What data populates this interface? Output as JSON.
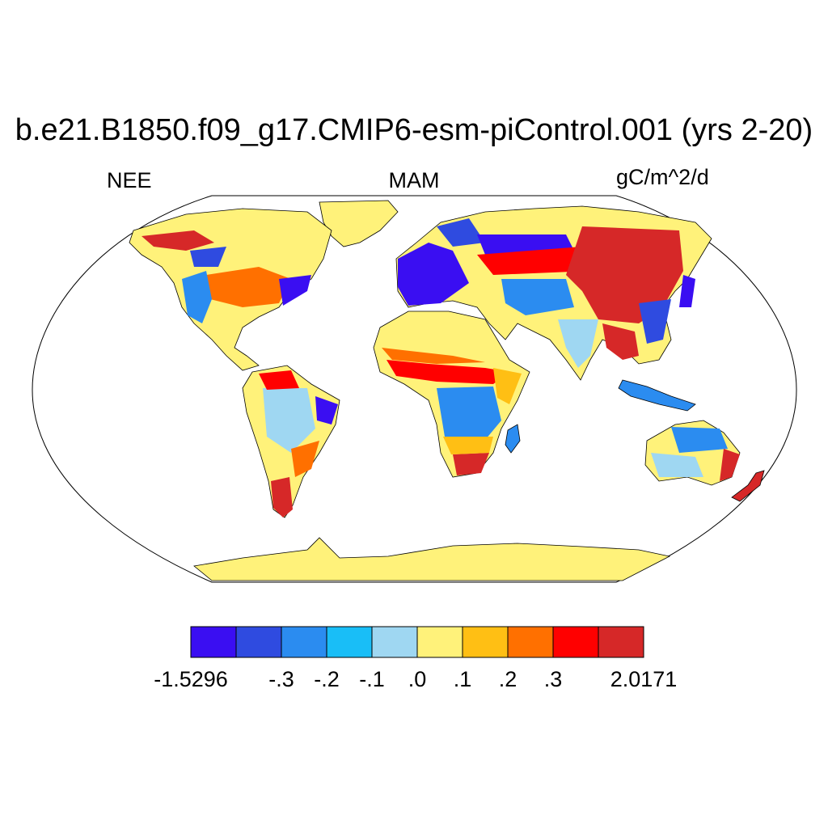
{
  "title": "b.e21.B1850.f09_g17.CMIP6-esm-piControl.001 (yrs 2-20)",
  "left_label": "NEE",
  "center_label": "MAM",
  "right_label": "gC/m^2/d",
  "colorbar": {
    "colors": [
      "#3a0ef2",
      "#2f4be0",
      "#2b8cf0",
      "#19bef7",
      "#9fd7f2",
      "#fff27a",
      "#ffbf14",
      "#ff7000",
      "#ff0000",
      "#d62828"
    ],
    "tick_labels": [
      "-1.5296",
      "-.3",
      "-.2",
      "-.1",
      ".0",
      ".1",
      ".2",
      ".3",
      "2.0171"
    ]
  }
}
